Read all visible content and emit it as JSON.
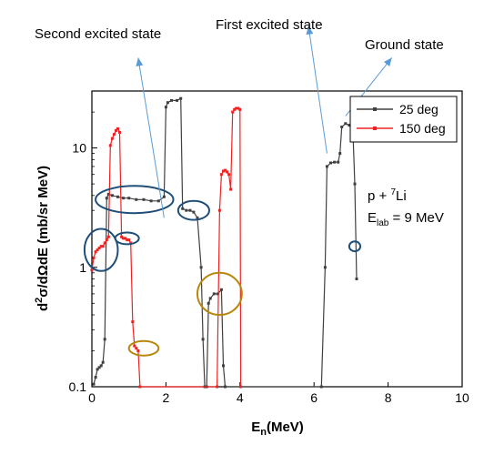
{
  "chart_data": {
    "type": "line",
    "xlabel": "E",
    "xlabel_sub": "n",
    "xlabel_suffix": "(MeV)",
    "ylabel_parts": [
      "d",
      "2",
      "σ/dΩdE (mb/sr MeV)"
    ],
    "x_range": [
      0,
      10
    ],
    "y_range": [
      0.1,
      30
    ],
    "y_scale": "log",
    "x_ticks": [
      0,
      2,
      4,
      6,
      8,
      10
    ],
    "x_tick_labels": [
      "0",
      "2",
      "4",
      "6",
      "8",
      "10"
    ],
    "y_ticks": [
      0.1,
      1,
      10
    ],
    "y_tick_labels": [
      "0.1",
      "1",
      "10"
    ],
    "legend_position": "top-right",
    "series": [
      {
        "name": "25 deg",
        "color": "#404040",
        "points": [
          [
            0.05,
            0.105
          ],
          [
            0.1,
            0.12
          ],
          [
            0.15,
            0.14
          ],
          [
            0.2,
            0.145
          ],
          [
            0.25,
            0.15
          ],
          [
            0.3,
            0.16
          ],
          [
            0.35,
            0.25
          ],
          [
            0.4,
            3.8
          ],
          [
            0.45,
            4.1
          ],
          [
            0.55,
            4.0
          ],
          [
            0.7,
            3.9
          ],
          [
            0.85,
            3.8
          ],
          [
            1.0,
            3.8
          ],
          [
            1.2,
            3.7
          ],
          [
            1.4,
            3.7
          ],
          [
            1.6,
            3.6
          ],
          [
            1.8,
            3.6
          ],
          [
            1.95,
            3.9
          ],
          [
            2.0,
            22
          ],
          [
            2.05,
            24
          ],
          [
            2.15,
            25
          ],
          [
            2.3,
            25
          ],
          [
            2.4,
            26
          ],
          [
            2.45,
            3.1
          ],
          [
            2.55,
            3.0
          ],
          [
            2.65,
            3.0
          ],
          [
            2.75,
            2.9
          ],
          [
            2.85,
            2.6
          ],
          [
            2.95,
            1.0
          ],
          [
            3.0,
            0.25
          ],
          [
            3.05,
            0.1
          ],
          [
            3.1,
            0.1
          ],
          [
            3.15,
            0.5
          ],
          [
            3.2,
            0.55
          ],
          [
            3.3,
            0.6
          ],
          [
            3.4,
            0.6
          ],
          [
            3.5,
            0.65
          ],
          [
            3.55,
            0.15
          ],
          [
            3.6,
            0.1
          ],
          [
            6.2,
            0.1
          ],
          [
            6.3,
            1.0
          ],
          [
            6.35,
            7.0
          ],
          [
            6.45,
            7.5
          ],
          [
            6.55,
            7.6
          ],
          [
            6.65,
            7.6
          ],
          [
            6.7,
            9.0
          ],
          [
            6.75,
            15
          ],
          [
            6.85,
            16
          ],
          [
            6.95,
            15.5
          ],
          [
            7.05,
            14
          ],
          [
            7.1,
            5.0
          ],
          [
            7.15,
            0.8
          ]
        ]
      },
      {
        "name": "150 deg",
        "color": "#ee2222",
        "points": [
          [
            0.0,
            0.95
          ],
          [
            0.05,
            1.2
          ],
          [
            0.1,
            1.35
          ],
          [
            0.15,
            1.4
          ],
          [
            0.2,
            1.45
          ],
          [
            0.25,
            1.5
          ],
          [
            0.3,
            1.5
          ],
          [
            0.35,
            1.6
          ],
          [
            0.4,
            1.7
          ],
          [
            0.45,
            1.8
          ],
          [
            0.5,
            10.5
          ],
          [
            0.55,
            12
          ],
          [
            0.6,
            13
          ],
          [
            0.65,
            14
          ],
          [
            0.7,
            14.5
          ],
          [
            0.75,
            13.5
          ],
          [
            0.8,
            1.8
          ],
          [
            0.85,
            1.75
          ],
          [
            0.9,
            1.75
          ],
          [
            0.95,
            1.7
          ],
          [
            1.0,
            1.7
          ],
          [
            1.05,
            1.6
          ],
          [
            1.1,
            0.35
          ],
          [
            1.15,
            0.22
          ],
          [
            1.2,
            0.21
          ],
          [
            1.25,
            0.2
          ],
          [
            1.3,
            0.1
          ],
          [
            3.38,
            0.1
          ],
          [
            3.45,
            3.0
          ],
          [
            3.5,
            6.0
          ],
          [
            3.55,
            6.4
          ],
          [
            3.6,
            6.5
          ],
          [
            3.65,
            6.3
          ],
          [
            3.7,
            6.0
          ],
          [
            3.75,
            4.5
          ],
          [
            3.8,
            20
          ],
          [
            3.85,
            21
          ],
          [
            3.9,
            21.5
          ],
          [
            3.95,
            21.5
          ],
          [
            4.0,
            21
          ],
          [
            4.02,
            0.1
          ]
        ]
      }
    ],
    "annotations": [
      {
        "text": "Second excited state",
        "arrow_from": [
          1.95,
          2.6
        ],
        "arrow_to": [
          1.25,
          57
        ]
      },
      {
        "text": "First excited state",
        "arrow_from": [
          6.35,
          9.0
        ],
        "arrow_to": [
          5.85,
          105
        ]
      },
      {
        "text": "Ground state",
        "arrow_from": [
          6.85,
          18.5
        ],
        "arrow_to": [
          8.1,
          57
        ]
      }
    ],
    "reaction_label": {
      "prefix": "p + ",
      "sup": "7",
      "suffix": "Li"
    },
    "energy_label": {
      "prefix": "E",
      "sub": "lab",
      "suffix": " = 9 MeV"
    },
    "circles": [
      {
        "color": "#1f4e79",
        "cx": 0.25,
        "cy": 1.4,
        "rx": 0.45,
        "ry_factor": 1.5
      },
      {
        "color": "#1f4e79",
        "cx": 1.15,
        "cy": 3.7,
        "rx": 1.05,
        "ry_factor": 1.3
      },
      {
        "color": "#1f4e79",
        "cx": 0.95,
        "cy": 1.75,
        "rx": 0.32,
        "ry_factor": 1.12
      },
      {
        "color": "#1f4e79",
        "cx": 2.75,
        "cy": 3.0,
        "rx": 0.42,
        "ry_factor": 1.2
      },
      {
        "color": "#1f4e79",
        "cx": 7.1,
        "cy": 1.5,
        "rx": 0.15,
        "ry_factor": 1.1
      },
      {
        "color": "#b8860b",
        "cx": 1.4,
        "cy": 0.21,
        "rx": 0.4,
        "ry_factor": 1.15
      },
      {
        "color": "#b8860b",
        "cx": 3.45,
        "cy": 0.6,
        "rx": 0.6,
        "ry_factor": 1.5
      }
    ],
    "arrow_color": "#5b9bd5"
  }
}
